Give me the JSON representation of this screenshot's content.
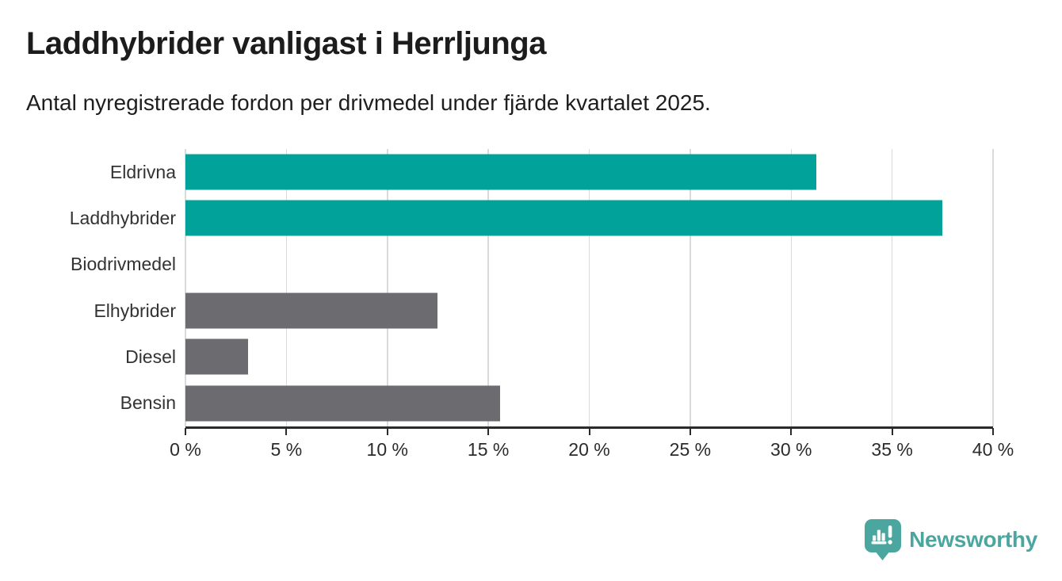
{
  "header": {
    "title": "Laddhybrider vanligast i Herrljunga",
    "subtitle": "Antal nyregistrerade fordon per drivmedel under fjärde kvartalet 2025."
  },
  "chart_data": {
    "type": "bar",
    "orientation": "horizontal",
    "title": "Laddhybrider vanligast i Herrljunga",
    "subtitle": "Antal nyregistrerade fordon per drivmedel under fjärde kvartalet 2025.",
    "categories": [
      "Eldrivna",
      "Laddhybrider",
      "Biodrivmedel",
      "Elhybrider",
      "Diesel",
      "Bensin"
    ],
    "values": [
      31.25,
      37.5,
      0,
      12.5,
      3.1,
      15.6
    ],
    "unit": "%",
    "bar_colors": [
      "#00a29a",
      "#00a29a",
      "#00a29a",
      "#6b6b70",
      "#6b6b70",
      "#6b6b70"
    ],
    "xlabel": "",
    "ylabel": "",
    "xlim": [
      0,
      40
    ],
    "x_ticks": [
      0,
      5,
      10,
      15,
      20,
      25,
      30,
      35,
      40
    ],
    "x_tick_labels": [
      "0 %",
      "5 %",
      "10 %",
      "15 %",
      "20 %",
      "25 %",
      "30 %",
      "35 %",
      "40 %"
    ],
    "grid": "vertical",
    "legend": "none"
  },
  "colors": {
    "highlight_teal": "#00a29a",
    "neutral_gray": "#6b6b70",
    "gridline": "#dadada",
    "axis": "#2b2b2b",
    "title_text": "#1c1c1c",
    "label_text": "#333333",
    "brand_teal": "#4ba6a0"
  },
  "footer": {
    "brand_name": "Newsworthy",
    "brand_icon": "newsworthy-pin-barchart-icon"
  }
}
